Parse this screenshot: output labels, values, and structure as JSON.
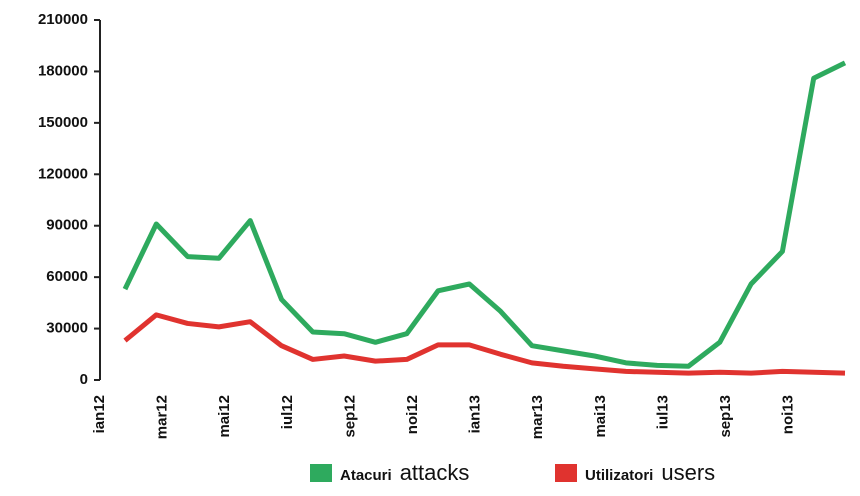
{
  "chart_data": {
    "type": "line",
    "categories": [
      "ian12",
      null,
      "mar12",
      null,
      "mai12",
      null,
      "iul12",
      null,
      "sep12",
      null,
      "noi12",
      null,
      "ian13",
      null,
      "mar13",
      null,
      "mai13",
      null,
      "iul13",
      null,
      "sep13",
      null,
      "noi13",
      null
    ],
    "series": [
      {
        "name": "Atacuri",
        "translation": "attacks",
        "color": "#2eaa5e",
        "values": [
          53000,
          91000,
          72000,
          71000,
          93000,
          47000,
          28000,
          27000,
          22000,
          27000,
          52000,
          56000,
          40000,
          20000,
          17000,
          14000,
          10000,
          8500,
          8000,
          22000,
          56000,
          75000,
          176000,
          185000
        ]
      },
      {
        "name": "Utilizatori",
        "translation": "users",
        "color": "#e0332f",
        "values": [
          23000,
          38000,
          33000,
          31000,
          34000,
          20000,
          12000,
          14000,
          11000,
          12000,
          20500,
          20500,
          15000,
          10000,
          8000,
          6500,
          5000,
          4500,
          4000,
          4500,
          4000,
          5000,
          4500,
          4000
        ]
      }
    ],
    "ylim": [
      0,
      210000
    ],
    "yticks": [
      0,
      30000,
      60000,
      90000,
      120000,
      150000,
      180000,
      210000
    ]
  }
}
